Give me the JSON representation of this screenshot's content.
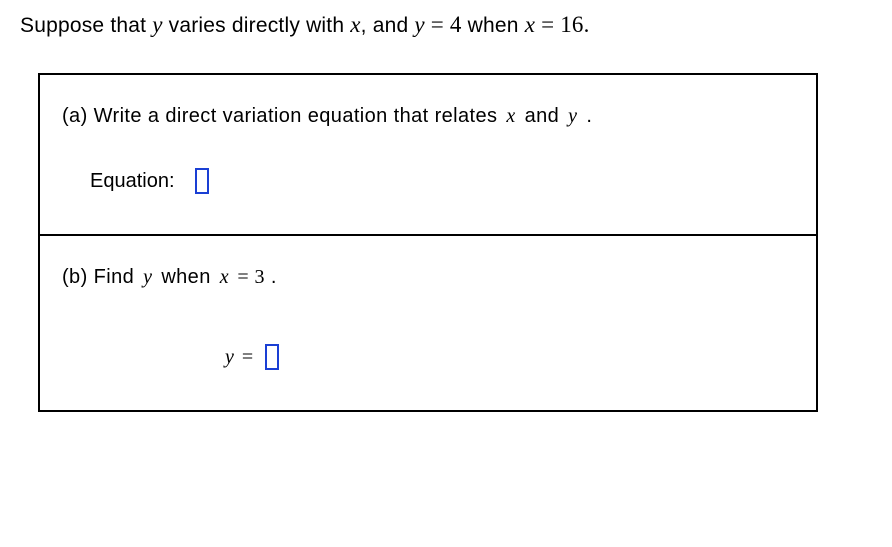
{
  "intro": {
    "prefix": "Suppose that ",
    "var_y": "y",
    "mid1": " varies directly with ",
    "var_x": "x",
    "mid2": ", and ",
    "eq1_lhs": "y",
    "eq_sign": " = ",
    "eq1_rhs": "4",
    "mid3": " when ",
    "eq2_lhs": "x",
    "eq2_rhs": "16",
    "suffix": "."
  },
  "part_a": {
    "label": "(a)",
    "text_1": " Write a direct variation equation that relates ",
    "var_x": "x",
    "text_2": " and ",
    "var_y": "y",
    "text_3": " .",
    "answer_label": "Equation:"
  },
  "part_b": {
    "label": "(b)",
    "text_1": " Find ",
    "var_y": "y",
    "text_2": " when ",
    "var_x": "x",
    "text_3": " = ",
    "val_x": "3",
    "text_4": " .",
    "answer_lhs": "y",
    "answer_eq": " = "
  },
  "colors": {
    "input_border": "#1a3fd4",
    "text": "#000000",
    "background": "#ffffff",
    "box_border": "#000000"
  },
  "typography": {
    "body_font": "Verdana",
    "math_font": "Times New Roman",
    "body_size": 20,
    "math_size": 23
  }
}
